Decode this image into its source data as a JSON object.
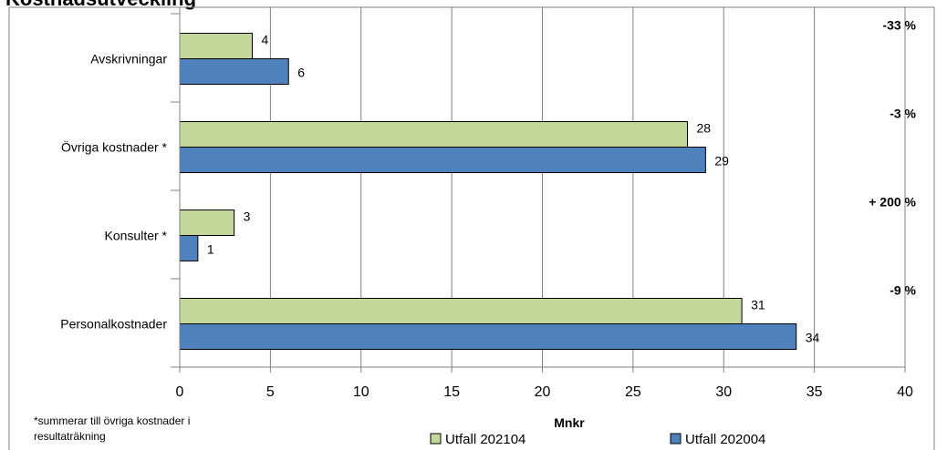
{
  "chart_data": {
    "type": "bar",
    "orientation": "horizontal",
    "title": "Kostnadsutveckling",
    "categories": [
      "Personalkostnader",
      "Konsulter *",
      "Övriga kostnader *",
      "Avskrivningar"
    ],
    "series": [
      {
        "name": "Utfall 202104",
        "values": [
          31,
          3,
          28,
          4
        ],
        "color": "#c4d79b",
        "label_texts": [
          "31",
          "3",
          "28",
          "4"
        ]
      },
      {
        "name": "Utfall 202004",
        "values": [
          34,
          1,
          29,
          6
        ],
        "color": "#4f81bd",
        "label_texts": [
          "34",
          "1",
          "29",
          "6"
        ]
      }
    ],
    "change_labels": [
      "-9 %",
      "+ 200 %",
      "-3 %",
      "-33 %"
    ],
    "xlabel": "Mnkr",
    "ylabel": "",
    "xlim": [
      0,
      40
    ],
    "xticks": [
      0,
      5,
      10,
      15,
      20,
      25,
      30,
      35,
      40
    ],
    "grid": true,
    "legend_position": "bottom",
    "footnote": [
      "*summerar till övriga kostnader i",
      "resultaträkning"
    ]
  },
  "colors": {
    "series_1_fill": "#c4d79b",
    "series_2_fill": "#4f81bd",
    "bar_border": "#000000",
    "gridline": "#808080",
    "frame": "#808080"
  }
}
